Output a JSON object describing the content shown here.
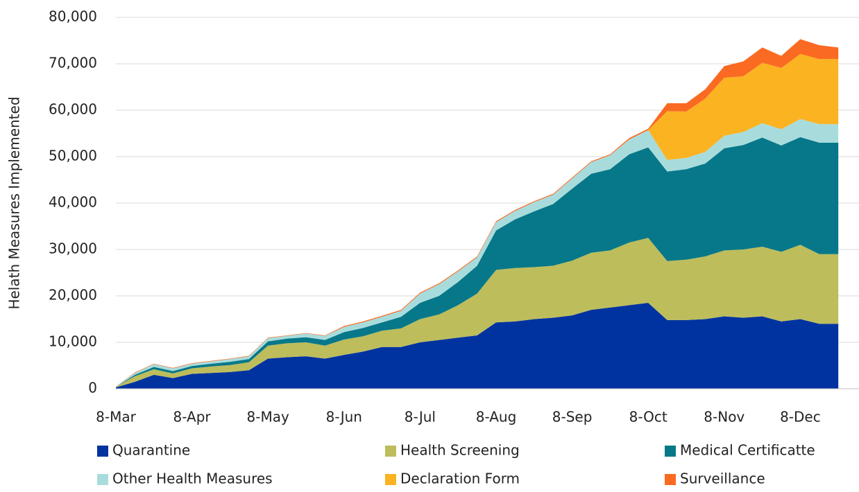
{
  "chart_data": {
    "type": "stacked_area",
    "y_label": "Helath Measures Implemented",
    "categories": [
      "8-Mar",
      null,
      null,
      null,
      "8-Apr",
      null,
      null,
      null,
      "8-May",
      null,
      null,
      null,
      "8-Jun",
      null,
      null,
      null,
      "8-Jul",
      null,
      null,
      null,
      "8-Aug",
      null,
      null,
      null,
      "8-Sep",
      null,
      null,
      null,
      "8-Oct",
      null,
      null,
      null,
      "8-Nov",
      null,
      null,
      null,
      "8-Dec",
      null,
      null
    ],
    "series": [
      {
        "name": "Quarantine",
        "color": "#0033a0",
        "values": [
          0.3,
          1.5,
          3,
          2.3,
          3.2,
          3.4,
          3.6,
          4,
          6.5,
          6.8,
          7,
          6.5,
          7.3,
          8,
          9,
          9,
          10,
          10.5,
          11,
          11.5,
          14.3,
          14.5,
          15,
          15.3,
          15.8,
          17,
          17.5,
          18,
          18.5,
          14.8,
          14.8,
          15,
          15.6,
          15.3,
          15.6,
          14.5,
          15,
          14,
          14
        ]
      },
      {
        "name": "Health Screening",
        "color": "#bdbd5c",
        "values": [
          0.1,
          1.2,
          1.2,
          1,
          1.2,
          1.4,
          1.5,
          1.7,
          2.8,
          3,
          3,
          2.8,
          3.3,
          3.3,
          3.5,
          4,
          5,
          5.5,
          7,
          9,
          11.3,
          11.5,
          11.2,
          11.2,
          11.8,
          12.3,
          12.3,
          13.5,
          14,
          12.7,
          13,
          13.5,
          14.2,
          14.7,
          15,
          15,
          16,
          15,
          15
        ]
      },
      {
        "name": "Medical Certificatte",
        "color": "#077889",
        "values": [
          0,
          0.3,
          0.5,
          0.5,
          0.5,
          0.6,
          0.7,
          0.7,
          0.9,
          1,
          1.1,
          1.2,
          1.6,
          1.8,
          1.8,
          2.5,
          3.5,
          4,
          5,
          6,
          8.5,
          10.5,
          12,
          13.3,
          15.5,
          17,
          17.5,
          19,
          19.5,
          19.3,
          19.5,
          20,
          22,
          22.5,
          23.5,
          22.9,
          23.2,
          24,
          24
        ]
      },
      {
        "name": "Other Health Measures",
        "color": "#a8dcdc",
        "values": [
          0.1,
          0.4,
          0.6,
          0.6,
          0.5,
          0.5,
          0.6,
          0.6,
          0.7,
          0.6,
          0.8,
          0.9,
          1.1,
          1.2,
          1.2,
          1.3,
          2,
          2.5,
          2.3,
          1.8,
          1.8,
          1.8,
          2,
          2,
          2.2,
          2.5,
          3,
          3.2,
          3.7,
          2.5,
          2.4,
          2.5,
          2.7,
          2.8,
          3.1,
          3.5,
          3.9,
          4,
          4
        ]
      },
      {
        "name": "Declaration Form",
        "color": "#fbb322",
        "values": [
          0,
          0,
          0,
          0,
          0,
          0,
          0,
          0,
          0,
          0,
          0,
          0,
          0,
          0,
          0,
          0,
          0,
          0,
          0,
          0,
          0,
          0,
          0,
          0,
          0,
          0,
          0,
          0,
          0,
          10.5,
          10,
          11.5,
          12.5,
          12,
          13,
          13.2,
          14,
          14,
          14
        ]
      },
      {
        "name": "Surveillance",
        "color": "#fb6a22",
        "values": [
          0,
          0.1,
          0.1,
          0.1,
          0.1,
          0.1,
          0.1,
          0.1,
          0.1,
          0.1,
          0.1,
          0.1,
          0.2,
          0.2,
          0.2,
          0.2,
          0.2,
          0.2,
          0.2,
          0.2,
          0.2,
          0.2,
          0.2,
          0.2,
          0.2,
          0.2,
          0.2,
          0.3,
          0.3,
          1.7,
          1.8,
          2,
          2.5,
          3.2,
          3.3,
          2.6,
          3.2,
          3,
          2.5
        ]
      }
    ],
    "ylim": [
      0,
      80
    ],
    "yticks": [
      0,
      {
        "value": 10,
        "label": "10,000"
      },
      {
        "value": 20,
        "label": "20,000"
      },
      {
        "value": 30,
        "label": "30,000"
      },
      {
        "value": 40,
        "label": "40,000"
      },
      {
        "value": 50,
        "label": "50,000"
      },
      {
        "value": 60,
        "label": "60,000"
      },
      {
        "value": 70,
        "label": "70,000"
      },
      {
        "value": 80,
        "label": "80,000"
      }
    ],
    "grid": true
  }
}
